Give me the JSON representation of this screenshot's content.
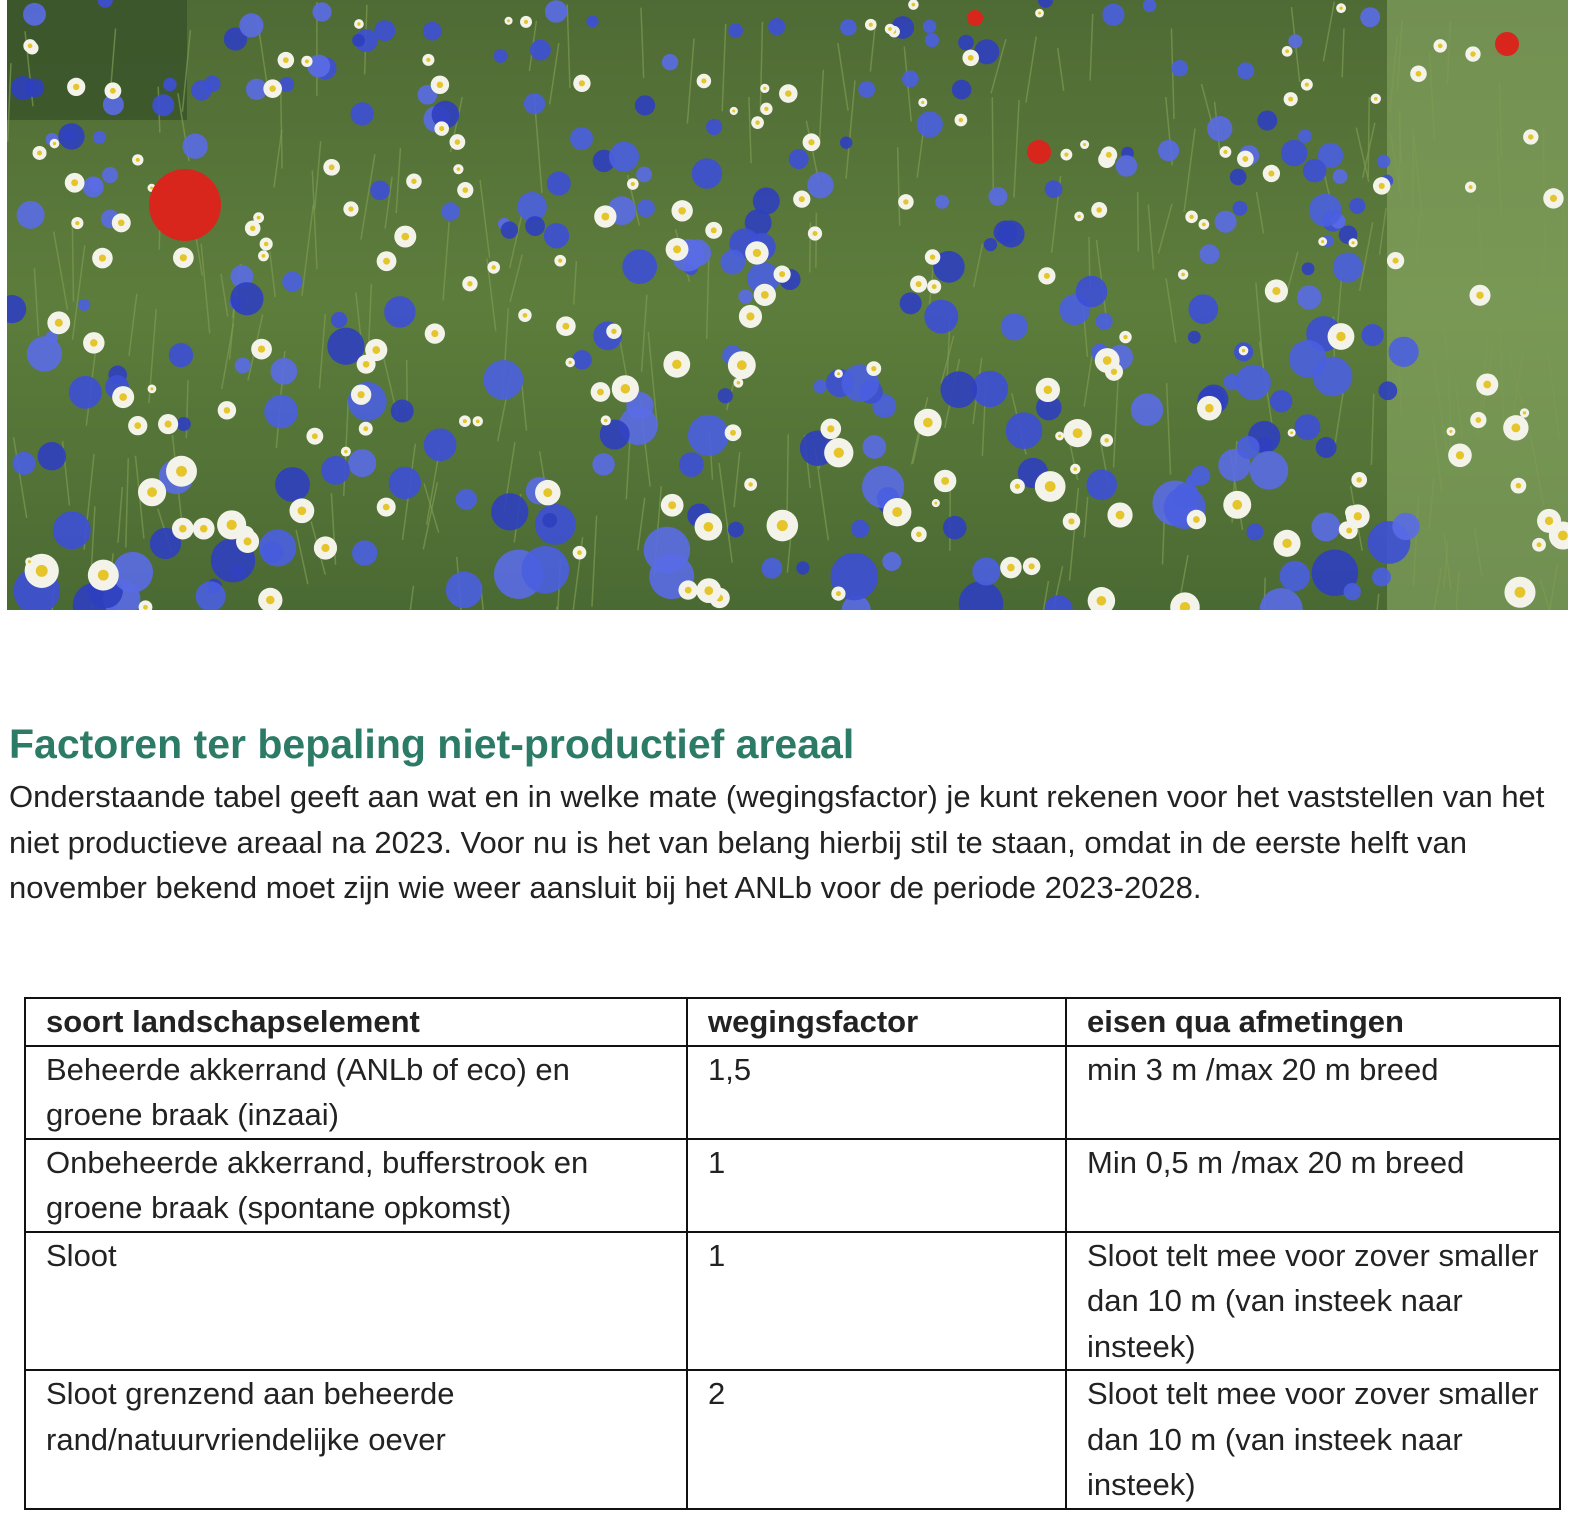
{
  "article": {
    "title": "Factoren ter bepaling niet-productief areaal",
    "intro": "Onderstaande tabel geeft aan wat en in welke mate (wegingsfactor) je kunt rekenen voor het vaststellen van het niet productieve areaal na 2023. Voor nu is het van belang hierbij stil te staan, omdat in de eerste helft van november bekend moet zijn wie weer aansluit bij het ANLb voor de periode 2023-2028.",
    "table": {
      "header": [
        "soort landschapselement",
        "wegingsfactor",
        "eisen qua afmetingen"
      ],
      "rows": [
        [
          "Beheerde akkerrand (ANLb of eco) en groene braak (inzaai)",
          "1,5",
          "min 3 m /max 20 m breed"
        ],
        [
          "Onbeheerde akkerrand, bufferstrook en groene braak (spontane opkomst)",
          "1",
          "Min 0,5 m /max 20 m breed"
        ],
        [
          "Sloot",
          "1",
          "Sloot telt mee voor zover smaller dan 10 m (van insteek naar insteek)"
        ],
        [
          "Sloot grenzend aan beheerde rand/natuurvriendelijke oever",
          "2",
          "Sloot telt mee voor zover smaller dan 10 m (van insteek naar insteek)"
        ]
      ]
    }
  }
}
